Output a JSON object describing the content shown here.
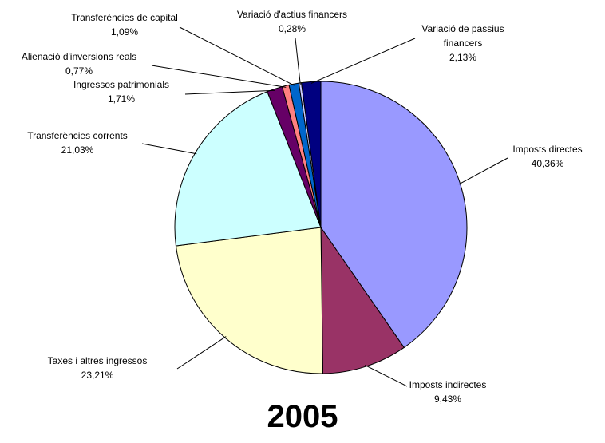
{
  "chart_data": {
    "type": "pie",
    "title": "2005",
    "categories": [
      "Imposts directes",
      "Imposts indirectes",
      "Taxes i altres ingressos",
      "Transferències corrents",
      "Ingressos patrimonials",
      "Alienació d'inversions reals",
      "Transferències de capital",
      "Variació d'actius financers",
      "Variació de passius financers"
    ],
    "values": [
      40.36,
      9.43,
      23.21,
      21.03,
      1.71,
      0.77,
      1.09,
      0.28,
      2.13
    ],
    "value_labels": [
      "40,36%",
      "9,43%",
      "23,21%",
      "21,03%",
      "1,71%",
      "0,77%",
      "1,09%",
      "0,28%",
      "2,13%"
    ],
    "colors": [
      "#9999FF",
      "#993366",
      "#FFFFCC",
      "#CCFFFF",
      "#660066",
      "#FF8080",
      "#0066CC",
      "#CCCCFF",
      "#000080"
    ]
  }
}
